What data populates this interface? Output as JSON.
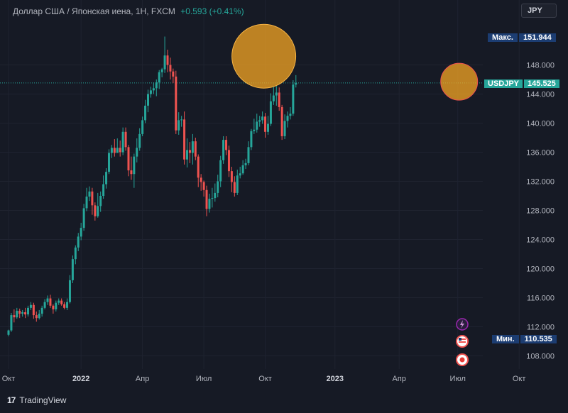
{
  "header": {
    "title": "Доллар США / Японская иена, 1Н, FXCM",
    "change": "+0.593 (+0.41%)"
  },
  "currency_button": "JPY",
  "tags": {
    "max_label": "Макс.",
    "max_value": "151.944",
    "symbol": "USDJPY",
    "symbol_value": "145.525",
    "min_label": "Мин.",
    "min_value": "110.535"
  },
  "footer": {
    "brand": "TradingView"
  },
  "colors": {
    "background": "#161a25",
    "up": "#26a69a",
    "down": "#ef5350",
    "highlight_fill": "#f5a623",
    "highlight_stroke": "#f7b445",
    "price_line": "#26a69a",
    "axis_text": "#b2b5be"
  },
  "event_icons": [
    "lightning-icon",
    "us-flag-icon",
    "japan-flag-icon"
  ],
  "chart_data": {
    "type": "candlestick",
    "title": "",
    "ylim": [
      105,
      156
    ],
    "y_ticks": [
      108,
      112,
      116,
      120,
      124,
      128,
      132,
      136,
      140,
      144,
      148
    ],
    "y_tick_labels": [
      "108.000",
      "112.000",
      "116.000",
      "120.000",
      "124.000",
      "128.000",
      "132.000",
      "136.000",
      "140.000",
      "144.000",
      "148.000"
    ],
    "x_ticks": [
      0,
      26,
      48,
      70,
      92,
      117,
      140,
      161,
      183
    ],
    "x_tick_labels": [
      "Окт",
      "2022",
      "Апр",
      "Июл",
      "Окт",
      "2023",
      "Апр",
      "Июл",
      "Окт"
    ],
    "max_price": 151.944,
    "min_price": 110.535,
    "current_price": 145.525,
    "candles": [
      [
        110.9,
        111.5,
        111.6,
        110.7
      ],
      [
        111.5,
        113.6,
        113.9,
        111.3
      ],
      [
        113.6,
        113.3,
        114.4,
        112.6
      ],
      [
        113.3,
        114.2,
        114.6,
        113.1
      ],
      [
        114.2,
        113.8,
        114.5,
        113.2
      ],
      [
        113.8,
        114.0,
        114.3,
        113.4
      ],
      [
        114.0,
        113.7,
        114.6,
        113.2
      ],
      [
        113.7,
        114.6,
        114.9,
        113.4
      ],
      [
        114.6,
        115.0,
        115.4,
        114.3
      ],
      [
        115.0,
        113.6,
        115.3,
        113.1
      ],
      [
        113.6,
        113.2,
        114.1,
        112.7
      ],
      [
        113.2,
        113.8,
        114.3,
        113.0
      ],
      [
        113.8,
        114.6,
        114.9,
        113.4
      ],
      [
        114.6,
        115.4,
        115.8,
        114.4
      ],
      [
        115.4,
        115.9,
        116.3,
        115.0
      ],
      [
        115.9,
        114.9,
        116.4,
        114.6
      ],
      [
        114.9,
        114.4,
        115.1,
        113.8
      ],
      [
        114.4,
        115.3,
        115.6,
        114.1
      ],
      [
        115.3,
        115.6,
        115.9,
        115.0
      ],
      [
        115.6,
        115.1,
        115.9,
        114.9
      ],
      [
        115.1,
        114.6,
        115.4,
        114.4
      ],
      [
        114.6,
        115.4,
        115.9,
        114.3
      ],
      [
        115.4,
        118.4,
        119.1,
        115.2
      ],
      [
        118.4,
        121.3,
        121.8,
        118.0
      ],
      [
        121.3,
        122.9,
        123.2,
        120.6
      ],
      [
        122.9,
        124.4,
        124.9,
        122.4
      ],
      [
        124.4,
        125.6,
        126.3,
        123.9
      ],
      [
        125.6,
        128.3,
        128.9,
        125.2
      ],
      [
        128.3,
        129.9,
        131.1,
        127.9
      ],
      [
        129.9,
        130.6,
        131.3,
        129.3
      ],
      [
        130.6,
        128.7,
        131.1,
        127.4
      ],
      [
        128.7,
        127.2,
        129.1,
        126.6
      ],
      [
        127.2,
        128.6,
        130.4,
        127.0
      ],
      [
        128.6,
        130.0,
        130.6,
        127.8
      ],
      [
        130.0,
        131.6,
        132.8,
        129.6
      ],
      [
        131.6,
        133.3,
        133.8,
        131.0
      ],
      [
        133.3,
        135.9,
        136.4,
        133.0
      ],
      [
        135.9,
        136.6,
        137.0,
        135.2
      ],
      [
        136.6,
        135.9,
        137.8,
        135.4
      ],
      [
        135.9,
        136.6,
        137.9,
        136.1
      ],
      [
        136.6,
        136.0,
        137.6,
        135.4
      ],
      [
        136.0,
        138.8,
        139.4,
        135.6
      ],
      [
        138.8,
        136.7,
        139.4,
        136.2
      ],
      [
        136.7,
        133.5,
        137.0,
        132.7
      ],
      [
        133.5,
        133.0,
        135.4,
        132.2
      ],
      [
        133.0,
        135.4,
        135.8,
        131.1
      ],
      [
        135.4,
        136.6,
        137.9,
        134.6
      ],
      [
        136.6,
        138.5,
        139.3,
        136.2
      ],
      [
        138.5,
        140.4,
        140.9,
        138.2
      ],
      [
        140.4,
        142.4,
        143.2,
        140.0
      ],
      [
        142.4,
        144.0,
        144.6,
        141.5
      ],
      [
        144.0,
        144.5,
        145.0,
        143.5
      ],
      [
        144.5,
        144.8,
        145.6,
        144.0
      ],
      [
        144.8,
        145.6,
        146.0,
        143.7
      ],
      [
        145.6,
        147.0,
        147.3,
        144.7
      ],
      [
        147.0,
        147.4,
        147.6,
        146.3
      ],
      [
        147.4,
        149.3,
        151.9,
        146.9
      ],
      [
        149.3,
        148.0,
        150.1,
        147.0
      ],
      [
        148.0,
        147.1,
        149.0,
        146.0
      ],
      [
        147.1,
        146.4,
        147.5,
        145.5
      ],
      [
        146.4,
        139.0,
        147.2,
        138.5
      ],
      [
        139.0,
        140.4,
        141.5,
        138.4
      ],
      [
        140.4,
        140.5,
        141.0,
        139.5
      ],
      [
        140.5,
        135.0,
        141.6,
        134.3
      ],
      [
        135.0,
        136.3,
        137.9,
        133.9
      ],
      [
        136.3,
        135.9,
        137.4,
        134.5
      ],
      [
        135.9,
        137.5,
        138.5,
        134.3
      ],
      [
        137.5,
        135.4,
        138.0,
        134.9
      ],
      [
        135.4,
        132.5,
        135.7,
        131.2
      ],
      [
        132.5,
        131.9,
        133.0,
        130.7
      ],
      [
        131.9,
        130.8,
        132.1,
        129.9
      ],
      [
        130.8,
        128.2,
        131.4,
        127.2
      ],
      [
        128.2,
        129.6,
        130.3,
        127.7
      ],
      [
        129.6,
        129.7,
        131.1,
        128.4
      ],
      [
        129.7,
        130.4,
        131.7,
        129.2
      ],
      [
        130.4,
        132.0,
        132.9,
        129.8
      ],
      [
        132.0,
        134.9,
        135.5,
        131.2
      ],
      [
        134.9,
        137.7,
        138.2,
        134.4
      ],
      [
        137.7,
        136.3,
        138.2,
        135.6
      ],
      [
        136.3,
        133.4,
        136.9,
        132.6
      ],
      [
        133.4,
        131.9,
        134.0,
        130.5
      ],
      [
        131.9,
        130.4,
        132.7,
        129.9
      ],
      [
        130.4,
        132.8,
        133.6,
        130.1
      ],
      [
        132.8,
        133.1,
        134.0,
        132.4
      ],
      [
        133.1,
        134.2,
        134.9,
        132.9
      ],
      [
        134.2,
        134.5,
        135.1,
        133.7
      ],
      [
        134.5,
        136.7,
        137.5,
        134.2
      ],
      [
        136.7,
        138.9,
        139.2,
        136.3
      ],
      [
        138.9,
        139.1,
        140.6,
        138.5
      ],
      [
        139.1,
        140.2,
        141.3,
        138.7
      ],
      [
        140.2,
        140.4,
        141.0,
        139.5
      ],
      [
        140.4,
        140.9,
        141.6,
        139.9
      ],
      [
        140.9,
        138.8,
        141.4,
        138.0
      ],
      [
        138.8,
        139.9,
        141.0,
        138.4
      ],
      [
        139.9,
        143.0,
        144.1,
        139.6
      ],
      [
        143.0,
        143.8,
        145.0,
        142.5
      ],
      [
        143.8,
        144.2,
        145.1,
        142.4
      ],
      [
        144.2,
        142.2,
        144.9,
        141.7
      ],
      [
        142.2,
        138.2,
        142.5,
        137.7
      ],
      [
        138.2,
        140.3,
        141.2,
        137.8
      ],
      [
        140.3,
        141.0,
        141.6,
        139.4
      ],
      [
        141.0,
        141.3,
        142.2,
        140.5
      ],
      [
        141.3,
        145.3,
        145.9,
        141.0
      ],
      [
        145.3,
        145.5,
        146.6,
        144.9
      ]
    ]
  }
}
